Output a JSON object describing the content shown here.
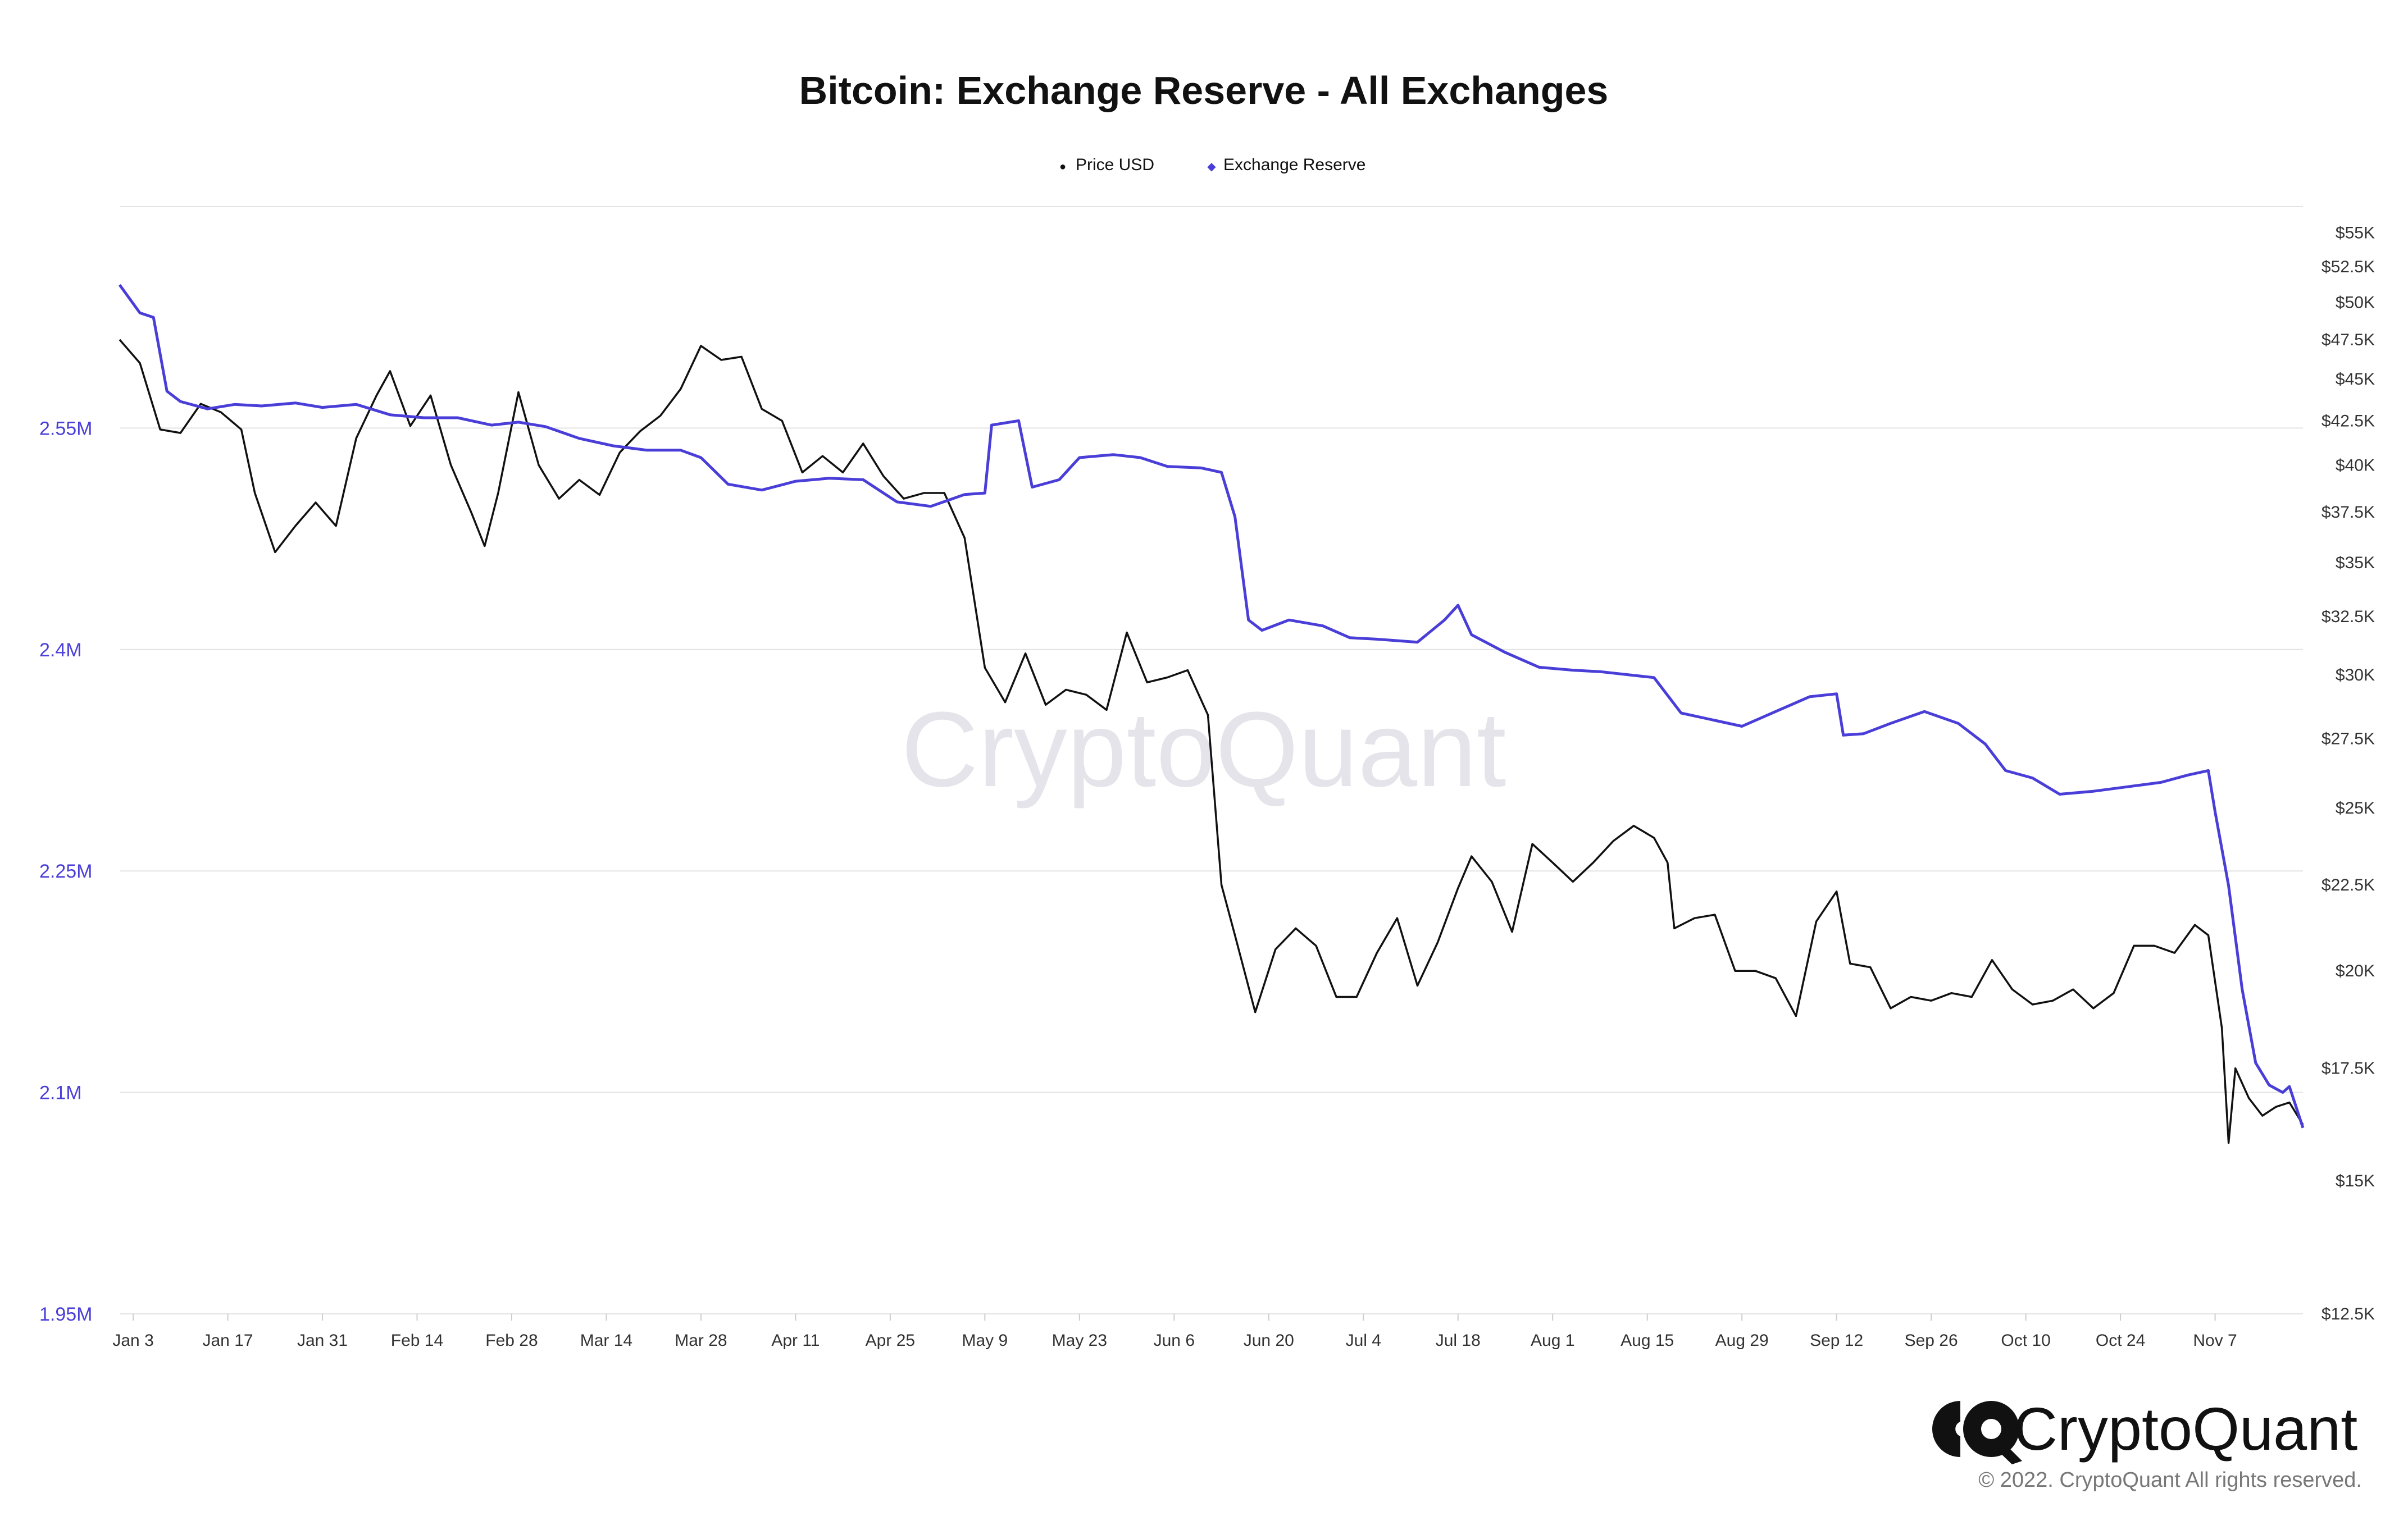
{
  "chart_data": {
    "type": "line",
    "title": "Bitcoin: Exchange Reserve - All Exchanges",
    "legend": {
      "placement": "top-center",
      "entries": [
        {
          "name": "Price USD",
          "color": "#111111",
          "marker": "●"
        },
        {
          "name": "Exchange Reserve",
          "color": "#4a3ed8",
          "marker": "◆"
        }
      ]
    },
    "grid": true,
    "x_axis": {
      "type": "date",
      "range": [
        "2022-01-01",
        "2022-11-20"
      ],
      "ticks": [
        {
          "label": "Jan 3",
          "date": "2022-01-03"
        },
        {
          "label": "Jan 17",
          "date": "2022-01-17"
        },
        {
          "label": "Jan 31",
          "date": "2022-01-31"
        },
        {
          "label": "Feb 14",
          "date": "2022-02-14"
        },
        {
          "label": "Feb 28",
          "date": "2022-02-28"
        },
        {
          "label": "Mar 14",
          "date": "2022-03-14"
        },
        {
          "label": "Mar 28",
          "date": "2022-03-28"
        },
        {
          "label": "Apr 11",
          "date": "2022-04-11"
        },
        {
          "label": "Apr 25",
          "date": "2022-04-25"
        },
        {
          "label": "May 9",
          "date": "2022-05-09"
        },
        {
          "label": "May 23",
          "date": "2022-05-23"
        },
        {
          "label": "Jun 6",
          "date": "2022-06-06"
        },
        {
          "label": "Jun 20",
          "date": "2022-06-20"
        },
        {
          "label": "Jul 4",
          "date": "2022-07-04"
        },
        {
          "label": "Jul 18",
          "date": "2022-07-18"
        },
        {
          "label": "Aug 1",
          "date": "2022-08-01"
        },
        {
          "label": "Aug 15",
          "date": "2022-08-15"
        },
        {
          "label": "Aug 29",
          "date": "2022-08-29"
        },
        {
          "label": "Sep 12",
          "date": "2022-09-12"
        },
        {
          "label": "Sep 26",
          "date": "2022-09-26"
        },
        {
          "label": "Oct 10",
          "date": "2022-10-10"
        },
        {
          "label": "Oct 24",
          "date": "2022-10-24"
        },
        {
          "label": "Nov 7",
          "date": "2022-11-07"
        }
      ]
    },
    "y_left": {
      "series": "Exchange Reserve",
      "range": [
        1950000,
        2700000
      ],
      "color": "#4a3ed8",
      "ticks": [
        {
          "label": "1.95M",
          "value": 1950000
        },
        {
          "label": "2.1M",
          "value": 2100000
        },
        {
          "label": "2.25M",
          "value": 2250000
        },
        {
          "label": "2.4M",
          "value": 2400000
        },
        {
          "label": "2.55M",
          "value": 2550000
        }
      ]
    },
    "y_right": {
      "series": "Price USD",
      "scale": "log",
      "range": [
        12500,
        57000
      ],
      "ticks": [
        {
          "label": "$12.5K",
          "value": 12500
        },
        {
          "label": "$15K",
          "value": 15000
        },
        {
          "label": "$17.5K",
          "value": 17500
        },
        {
          "label": "$20K",
          "value": 20000
        },
        {
          "label": "$22.5K",
          "value": 22500
        },
        {
          "label": "$25K",
          "value": 25000
        },
        {
          "label": "$27.5K",
          "value": 27500
        },
        {
          "label": "$30K",
          "value": 30000
        },
        {
          "label": "$32.5K",
          "value": 32500
        },
        {
          "label": "$35K",
          "value": 35000
        },
        {
          "label": "$37.5K",
          "value": 37500
        },
        {
          "label": "$40K",
          "value": 40000
        },
        {
          "label": "$42.5K",
          "value": 42500
        },
        {
          "label": "$45K",
          "value": 45000
        },
        {
          "label": "$47.5K",
          "value": 47500
        },
        {
          "label": "$50K",
          "value": 50000
        },
        {
          "label": "$52.5K",
          "value": 52500
        },
        {
          "label": "$55K",
          "value": 55000
        }
      ]
    },
    "series": [
      {
        "name": "Price USD",
        "color": "#111111",
        "axis": "right",
        "points": [
          [
            "2022-01-01",
            47500
          ],
          [
            "2022-01-04",
            46000
          ],
          [
            "2022-01-07",
            42000
          ],
          [
            "2022-01-10",
            41800
          ],
          [
            "2022-01-13",
            43500
          ],
          [
            "2022-01-16",
            43000
          ],
          [
            "2022-01-19",
            42000
          ],
          [
            "2022-01-21",
            38500
          ],
          [
            "2022-01-24",
            35500
          ],
          [
            "2022-01-27",
            36800
          ],
          [
            "2022-01-30",
            38000
          ],
          [
            "2022-02-02",
            36800
          ],
          [
            "2022-02-05",
            41500
          ],
          [
            "2022-02-08",
            44000
          ],
          [
            "2022-02-10",
            45500
          ],
          [
            "2022-02-13",
            42200
          ],
          [
            "2022-02-16",
            44000
          ],
          [
            "2022-02-19",
            40000
          ],
          [
            "2022-02-22",
            37500
          ],
          [
            "2022-02-24",
            35800
          ],
          [
            "2022-02-26",
            38500
          ],
          [
            "2022-03-01",
            44200
          ],
          [
            "2022-03-04",
            40000
          ],
          [
            "2022-03-07",
            38200
          ],
          [
            "2022-03-10",
            39200
          ],
          [
            "2022-03-13",
            38400
          ],
          [
            "2022-03-16",
            40700
          ],
          [
            "2022-03-19",
            41900
          ],
          [
            "2022-03-22",
            42800
          ],
          [
            "2022-03-25",
            44400
          ],
          [
            "2022-03-28",
            47100
          ],
          [
            "2022-03-31",
            46200
          ],
          [
            "2022-04-03",
            46400
          ],
          [
            "2022-04-06",
            43200
          ],
          [
            "2022-04-09",
            42500
          ],
          [
            "2022-04-12",
            39600
          ],
          [
            "2022-04-15",
            40500
          ],
          [
            "2022-04-18",
            39600
          ],
          [
            "2022-04-21",
            41200
          ],
          [
            "2022-04-24",
            39400
          ],
          [
            "2022-04-27",
            38200
          ],
          [
            "2022-04-30",
            38500
          ],
          [
            "2022-05-03",
            38500
          ],
          [
            "2022-05-06",
            36200
          ],
          [
            "2022-05-09",
            30300
          ],
          [
            "2022-05-12",
            28900
          ],
          [
            "2022-05-15",
            30900
          ],
          [
            "2022-05-18",
            28800
          ],
          [
            "2022-05-21",
            29400
          ],
          [
            "2022-05-24",
            29200
          ],
          [
            "2022-05-27",
            28600
          ],
          [
            "2022-05-30",
            31800
          ],
          [
            "2022-06-02",
            29700
          ],
          [
            "2022-06-05",
            29900
          ],
          [
            "2022-06-08",
            30200
          ],
          [
            "2022-06-11",
            28400
          ],
          [
            "2022-06-13",
            22500
          ],
          [
            "2022-06-15",
            21000
          ],
          [
            "2022-06-18",
            18900
          ],
          [
            "2022-06-21",
            20600
          ],
          [
            "2022-06-24",
            21200
          ],
          [
            "2022-06-27",
            20700
          ],
          [
            "2022-06-30",
            19300
          ],
          [
            "2022-07-03",
            19300
          ],
          [
            "2022-07-06",
            20500
          ],
          [
            "2022-07-09",
            21500
          ],
          [
            "2022-07-12",
            19600
          ],
          [
            "2022-07-15",
            20800
          ],
          [
            "2022-07-18",
            22400
          ],
          [
            "2022-07-20",
            23400
          ],
          [
            "2022-07-23",
            22600
          ],
          [
            "2022-07-26",
            21100
          ],
          [
            "2022-07-29",
            23800
          ],
          [
            "2022-08-01",
            23200
          ],
          [
            "2022-08-04",
            22600
          ],
          [
            "2022-08-07",
            23200
          ],
          [
            "2022-08-10",
            23900
          ],
          [
            "2022-08-13",
            24400
          ],
          [
            "2022-08-16",
            24000
          ],
          [
            "2022-08-18",
            23200
          ],
          [
            "2022-08-19",
            21200
          ],
          [
            "2022-08-22",
            21500
          ],
          [
            "2022-08-25",
            21600
          ],
          [
            "2022-08-28",
            20000
          ],
          [
            "2022-08-31",
            20000
          ],
          [
            "2022-09-03",
            19800
          ],
          [
            "2022-09-06",
            18800
          ],
          [
            "2022-09-09",
            21400
          ],
          [
            "2022-09-12",
            22300
          ],
          [
            "2022-09-14",
            20200
          ],
          [
            "2022-09-17",
            20100
          ],
          [
            "2022-09-20",
            19000
          ],
          [
            "2022-09-23",
            19300
          ],
          [
            "2022-09-26",
            19200
          ],
          [
            "2022-09-29",
            19400
          ],
          [
            "2022-10-02",
            19300
          ],
          [
            "2022-10-05",
            20300
          ],
          [
            "2022-10-08",
            19500
          ],
          [
            "2022-10-11",
            19100
          ],
          [
            "2022-10-14",
            19200
          ],
          [
            "2022-10-17",
            19500
          ],
          [
            "2022-10-20",
            19000
          ],
          [
            "2022-10-23",
            19400
          ],
          [
            "2022-10-26",
            20700
          ],
          [
            "2022-10-29",
            20700
          ],
          [
            "2022-11-01",
            20500
          ],
          [
            "2022-11-04",
            21300
          ],
          [
            "2022-11-06",
            21000
          ],
          [
            "2022-11-08",
            18500
          ],
          [
            "2022-11-09",
            15800
          ],
          [
            "2022-11-10",
            17500
          ],
          [
            "2022-11-12",
            16800
          ],
          [
            "2022-11-14",
            16400
          ],
          [
            "2022-11-16",
            16600
          ],
          [
            "2022-11-18",
            16700
          ],
          [
            "2022-11-20",
            16200
          ]
        ]
      },
      {
        "name": "Exchange Reserve",
        "color": "#4a3ed8",
        "axis": "left",
        "points": [
          [
            "2022-01-01",
            2647000
          ],
          [
            "2022-01-04",
            2628000
          ],
          [
            "2022-01-06",
            2625000
          ],
          [
            "2022-01-08",
            2575000
          ],
          [
            "2022-01-10",
            2568000
          ],
          [
            "2022-01-14",
            2563000
          ],
          [
            "2022-01-18",
            2566000
          ],
          [
            "2022-01-22",
            2565000
          ],
          [
            "2022-01-27",
            2567000
          ],
          [
            "2022-01-31",
            2564000
          ],
          [
            "2022-02-05",
            2566000
          ],
          [
            "2022-02-10",
            2559000
          ],
          [
            "2022-02-15",
            2557000
          ],
          [
            "2022-02-20",
            2557000
          ],
          [
            "2022-02-25",
            2552000
          ],
          [
            "2022-03-01",
            2554000
          ],
          [
            "2022-03-05",
            2551000
          ],
          [
            "2022-03-10",
            2543000
          ],
          [
            "2022-03-15",
            2538000
          ],
          [
            "2022-03-20",
            2535000
          ],
          [
            "2022-03-25",
            2535000
          ],
          [
            "2022-03-28",
            2530000
          ],
          [
            "2022-04-01",
            2512000
          ],
          [
            "2022-04-06",
            2508000
          ],
          [
            "2022-04-11",
            2514000
          ],
          [
            "2022-04-16",
            2516000
          ],
          [
            "2022-04-21",
            2515000
          ],
          [
            "2022-04-26",
            2500000
          ],
          [
            "2022-05-01",
            2497000
          ],
          [
            "2022-05-06",
            2505000
          ],
          [
            "2022-05-09",
            2506000
          ],
          [
            "2022-05-10",
            2552000
          ],
          [
            "2022-05-14",
            2555000
          ],
          [
            "2022-05-16",
            2510000
          ],
          [
            "2022-05-20",
            2515000
          ],
          [
            "2022-05-23",
            2530000
          ],
          [
            "2022-05-28",
            2532000
          ],
          [
            "2022-06-01",
            2530000
          ],
          [
            "2022-06-05",
            2524000
          ],
          [
            "2022-06-10",
            2523000
          ],
          [
            "2022-06-13",
            2520000
          ],
          [
            "2022-06-15",
            2490000
          ],
          [
            "2022-06-17",
            2420000
          ],
          [
            "2022-06-19",
            2413000
          ],
          [
            "2022-06-23",
            2420000
          ],
          [
            "2022-06-28",
            2416000
          ],
          [
            "2022-07-02",
            2408000
          ],
          [
            "2022-07-06",
            2407000
          ],
          [
            "2022-07-12",
            2405000
          ],
          [
            "2022-07-16",
            2420000
          ],
          [
            "2022-07-18",
            2430000
          ],
          [
            "2022-07-20",
            2410000
          ],
          [
            "2022-07-25",
            2398000
          ],
          [
            "2022-07-30",
            2388000
          ],
          [
            "2022-08-04",
            2386000
          ],
          [
            "2022-08-08",
            2385000
          ],
          [
            "2022-08-12",
            2383000
          ],
          [
            "2022-08-16",
            2381000
          ],
          [
            "2022-08-20",
            2357000
          ],
          [
            "2022-08-25",
            2352000
          ],
          [
            "2022-08-29",
            2348000
          ],
          [
            "2022-09-03",
            2358000
          ],
          [
            "2022-09-08",
            2368000
          ],
          [
            "2022-09-12",
            2370000
          ],
          [
            "2022-09-13",
            2342000
          ],
          [
            "2022-09-16",
            2343000
          ],
          [
            "2022-09-20",
            2350000
          ],
          [
            "2022-09-25",
            2358000
          ],
          [
            "2022-09-30",
            2350000
          ],
          [
            "2022-10-04",
            2336000
          ],
          [
            "2022-10-07",
            2318000
          ],
          [
            "2022-10-11",
            2313000
          ],
          [
            "2022-10-15",
            2302000
          ],
          [
            "2022-10-20",
            2304000
          ],
          [
            "2022-10-25",
            2307000
          ],
          [
            "2022-10-30",
            2310000
          ],
          [
            "2022-11-03",
            2315000
          ],
          [
            "2022-11-06",
            2318000
          ],
          [
            "2022-11-07",
            2290000
          ],
          [
            "2022-11-09",
            2240000
          ],
          [
            "2022-11-11",
            2170000
          ],
          [
            "2022-11-13",
            2120000
          ],
          [
            "2022-11-15",
            2105000
          ],
          [
            "2022-11-17",
            2100000
          ],
          [
            "2022-11-18",
            2104000
          ],
          [
            "2022-11-20",
            2076000
          ]
        ]
      }
    ],
    "watermark": "CryptoQuant",
    "branding": {
      "name": "CryptoQuant",
      "copyright": "© 2022. CryptoQuant All rights reserved."
    }
  }
}
